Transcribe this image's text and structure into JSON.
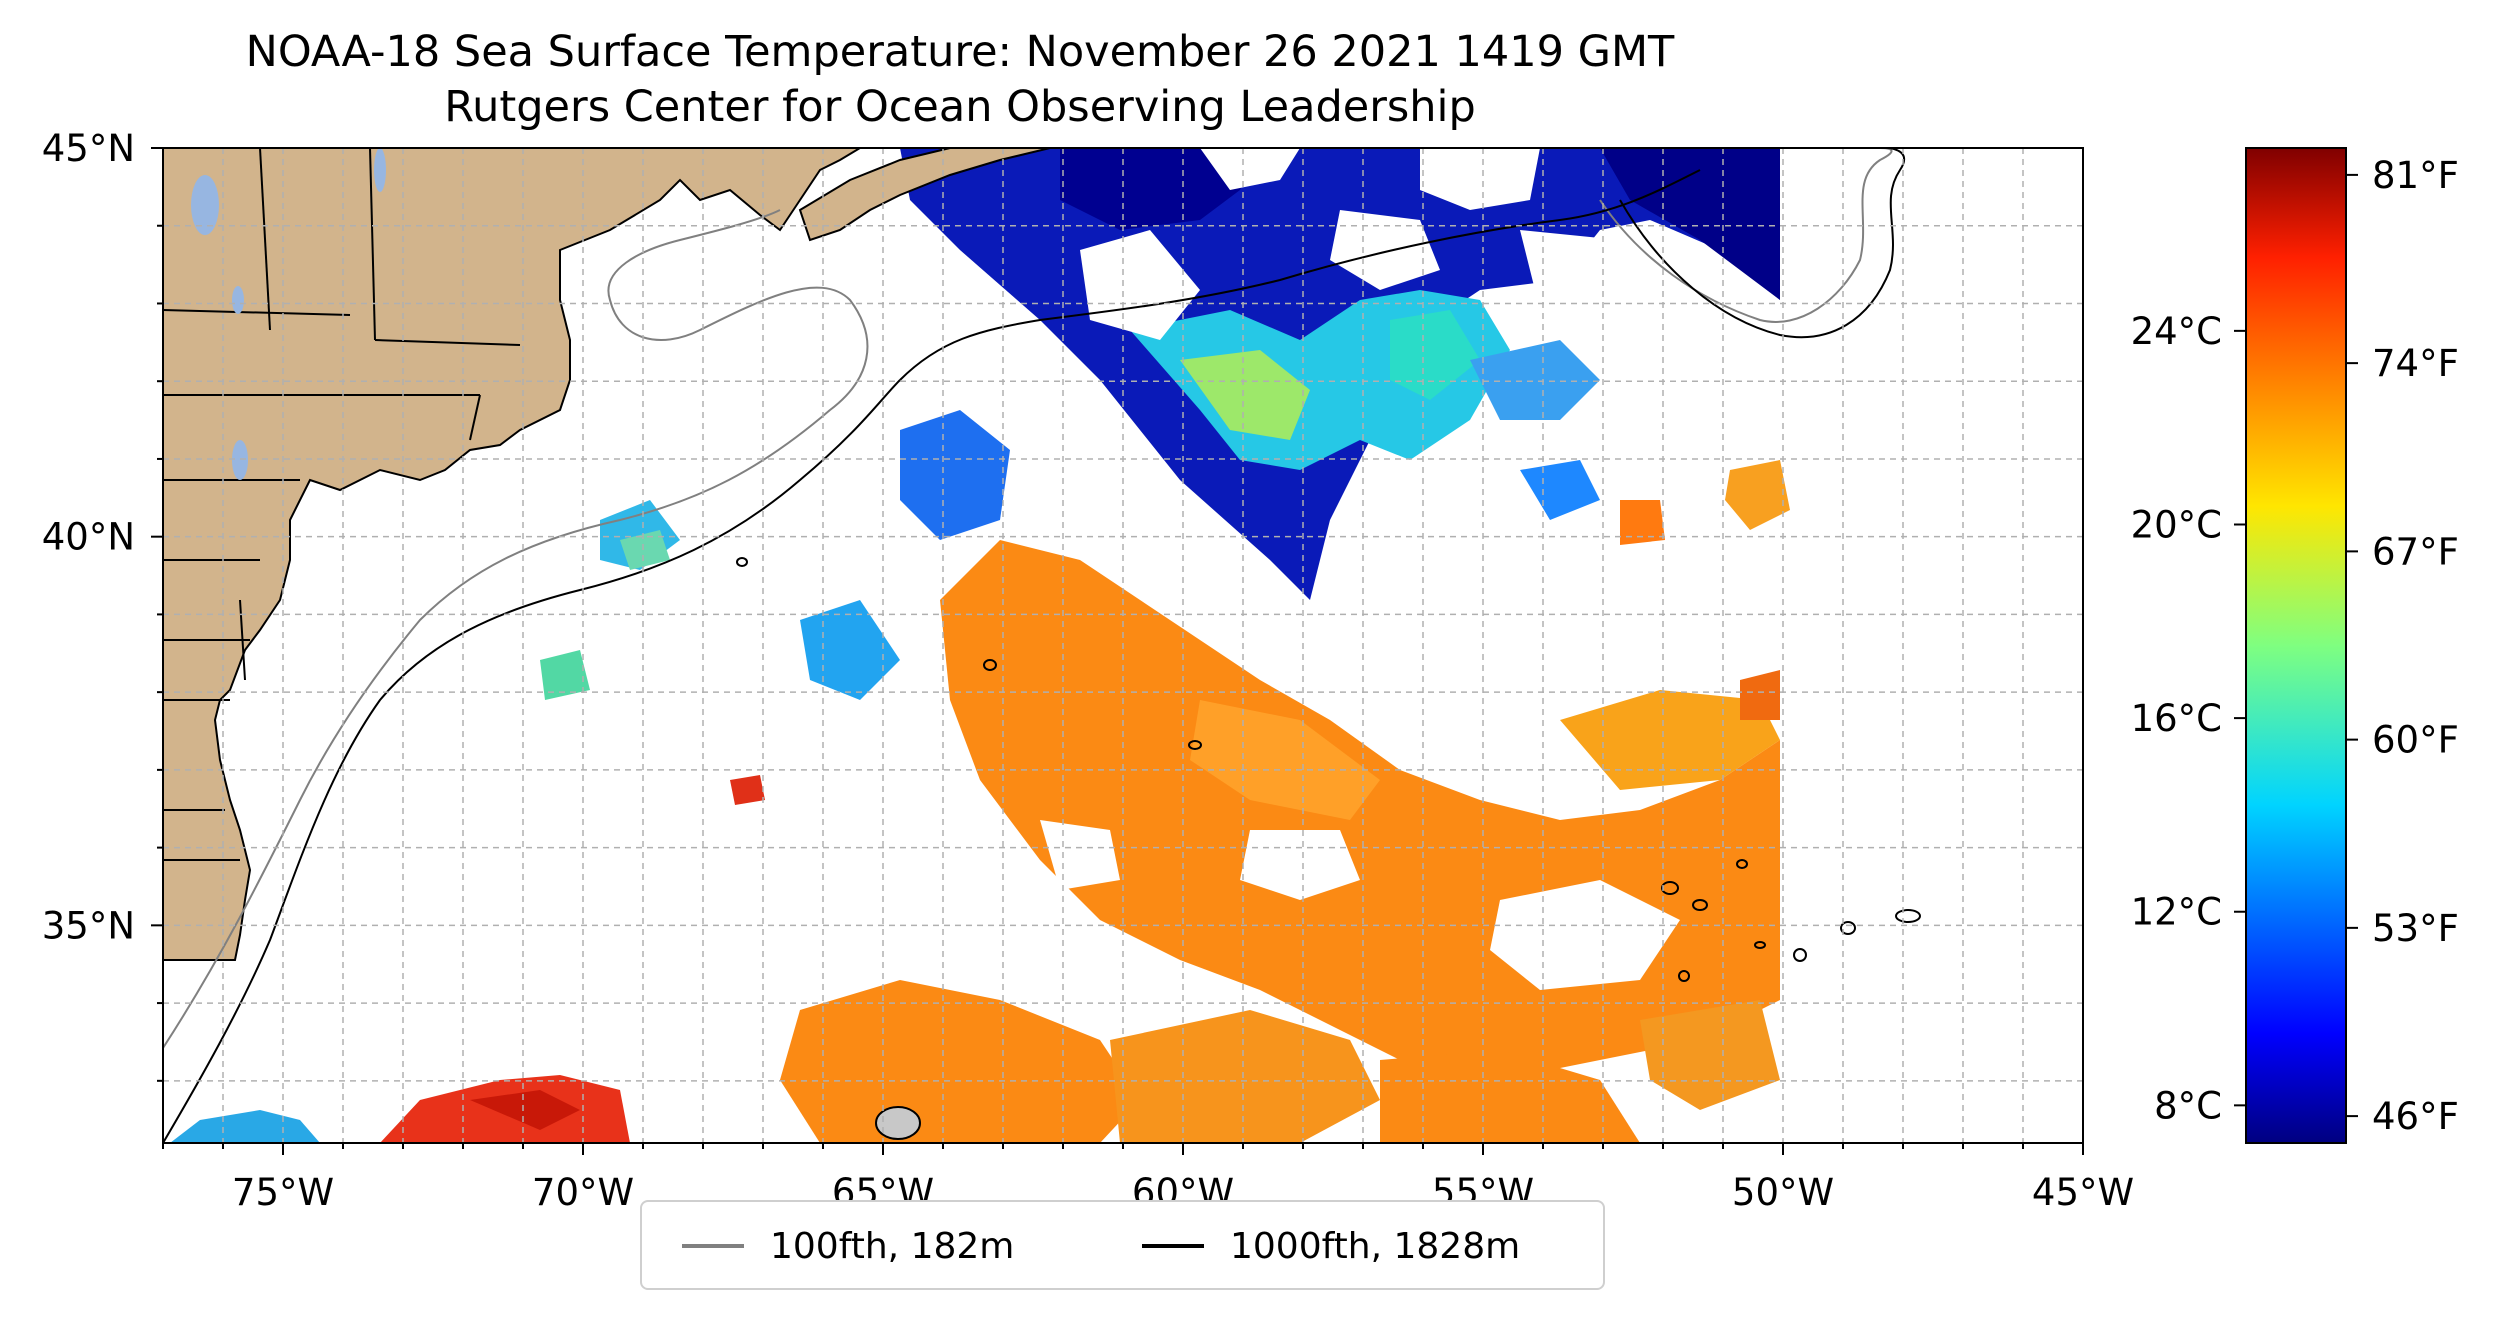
{
  "title": "NOAA-18 Sea Surface Temperature: November 26 2021 1419 GMT",
  "subtitle": "Rutgers Center for Ocean Observing Leadership",
  "map": {
    "lon_range": [
      -77,
      -45
    ],
    "lat_range": [
      32.2,
      45
    ],
    "lon_ticks": [
      {
        "value": -75,
        "label": "75°W"
      },
      {
        "value": -70,
        "label": "70°W"
      },
      {
        "value": -65,
        "label": "65°W"
      },
      {
        "value": -60,
        "label": "60°W"
      },
      {
        "value": -55,
        "label": "55°W"
      },
      {
        "value": -50,
        "label": "50°W"
      },
      {
        "value": -45,
        "label": "45°W"
      }
    ],
    "lat_ticks": [
      {
        "value": 45,
        "label": "45°N"
      },
      {
        "value": 40,
        "label": "40°N"
      },
      {
        "value": 35,
        "label": "35°N"
      }
    ],
    "grid": true,
    "land_color": "#d2b48c",
    "lake_color": "#97b6e1",
    "colormap": "jet"
  },
  "colorbar": {
    "celsius_ticks": [
      {
        "value": 8,
        "label": "8°C"
      },
      {
        "value": 12,
        "label": "12°C"
      },
      {
        "value": 16,
        "label": "16°C"
      },
      {
        "value": 20,
        "label": "20°C"
      },
      {
        "value": 24,
        "label": "24°C"
      }
    ],
    "fahrenheit_ticks": [
      {
        "value": 46,
        "label": "46°F"
      },
      {
        "value": 53,
        "label": "53°F"
      },
      {
        "value": 60,
        "label": "60°F"
      },
      {
        "value": 67,
        "label": "67°F"
      },
      {
        "value": 74,
        "label": "74°F"
      },
      {
        "value": 81,
        "label": "81°F"
      }
    ],
    "range_f": [
      45,
      82
    ]
  },
  "legend": {
    "items": [
      {
        "label": "100fth, 182m",
        "color": "#808080"
      },
      {
        "label": "1000fth, 1828m",
        "color": "#000000"
      }
    ]
  }
}
